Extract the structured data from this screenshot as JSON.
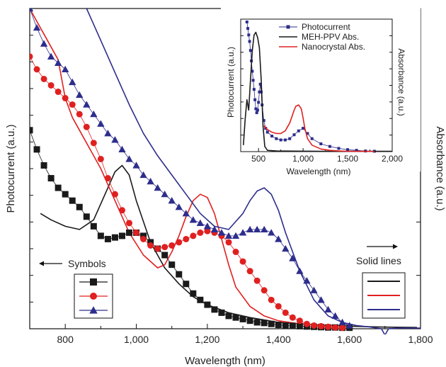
{
  "chart_data": [
    {
      "type": "line",
      "xlabel": "Wavelength (nm)",
      "ylabel_left": "Photocurrent (a.u.)",
      "ylabel_right": "Absorbance (a.u.)",
      "xlim": [
        700,
        1800
      ],
      "ylim": [
        0,
        1
      ],
      "x_ticks": [
        800,
        1000,
        1200,
        1400,
        1600,
        1800
      ],
      "x_tick_labels": [
        "800",
        "1,000",
        "1,200",
        "1,400",
        "1,600",
        "1,800"
      ],
      "annotations": {
        "symbols": "Symbols",
        "solid_lines": "Solid lines"
      },
      "series": [
        {
          "kind": "photocurrent",
          "marker": "square",
          "color": "#1a1a1a",
          "x": [
            700,
            720,
            740,
            760,
            780,
            800,
            820,
            840,
            860,
            880,
            900,
            920,
            940,
            960,
            980,
            1000,
            1020,
            1040,
            1060,
            1080,
            1100,
            1120,
            1140,
            1160,
            1180,
            1200,
            1220,
            1240,
            1260,
            1280,
            1300,
            1320,
            1340,
            1360,
            1380,
            1400,
            1420,
            1440,
            1460,
            1480,
            1500,
            1520,
            1540,
            1560,
            1580,
            1600
          ],
          "y": [
            0.62,
            0.56,
            0.51,
            0.47,
            0.44,
            0.42,
            0.4,
            0.38,
            0.35,
            0.32,
            0.29,
            0.28,
            0.285,
            0.29,
            0.3,
            0.3,
            0.29,
            0.27,
            0.25,
            0.23,
            0.2,
            0.17,
            0.14,
            0.11,
            0.09,
            0.075,
            0.06,
            0.05,
            0.04,
            0.035,
            0.03,
            0.025,
            0.02,
            0.018,
            0.015,
            0.012,
            0.01,
            0.009,
            0.008,
            0.007,
            0.006,
            0.005,
            0.004,
            0.004,
            0.003,
            0.003
          ]
        },
        {
          "kind": "photocurrent",
          "marker": "circle",
          "color": "#e02020",
          "x": [
            700,
            720,
            740,
            760,
            780,
            800,
            820,
            840,
            860,
            880,
            900,
            920,
            940,
            960,
            980,
            1000,
            1020,
            1040,
            1060,
            1080,
            1100,
            1120,
            1140,
            1160,
            1180,
            1200,
            1220,
            1240,
            1260,
            1280,
            1300,
            1320,
            1340,
            1360,
            1380,
            1400,
            1420,
            1440,
            1460,
            1480,
            1500,
            1520,
            1540,
            1560,
            1580
          ],
          "y": [
            0.85,
            0.81,
            0.78,
            0.76,
            0.74,
            0.72,
            0.7,
            0.67,
            0.63,
            0.58,
            0.53,
            0.47,
            0.42,
            0.37,
            0.33,
            0.3,
            0.28,
            0.26,
            0.25,
            0.255,
            0.26,
            0.27,
            0.28,
            0.29,
            0.3,
            0.305,
            0.3,
            0.29,
            0.27,
            0.24,
            0.21,
            0.18,
            0.15,
            0.12,
            0.09,
            0.07,
            0.05,
            0.035,
            0.025,
            0.015,
            0.01,
            0.008,
            0.006,
            0.004,
            0.003
          ]
        },
        {
          "kind": "photocurrent",
          "marker": "triangle",
          "color": "#2d2d8c",
          "x": [
            700,
            720,
            740,
            760,
            780,
            800,
            820,
            840,
            860,
            880,
            900,
            920,
            940,
            960,
            980,
            1000,
            1020,
            1040,
            1060,
            1080,
            1100,
            1120,
            1140,
            1160,
            1180,
            1200,
            1220,
            1240,
            1260,
            1280,
            1300,
            1320,
            1340,
            1360,
            1380,
            1400,
            1420,
            1440,
            1460,
            1480,
            1500,
            1520,
            1540,
            1560,
            1580,
            1600
          ],
          "y": [
            1.0,
            0.94,
            0.89,
            0.85,
            0.83,
            0.81,
            0.77,
            0.73,
            0.7,
            0.67,
            0.64,
            0.61,
            0.59,
            0.56,
            0.53,
            0.51,
            0.48,
            0.46,
            0.44,
            0.42,
            0.4,
            0.38,
            0.36,
            0.34,
            0.33,
            0.32,
            0.31,
            0.3,
            0.29,
            0.29,
            0.3,
            0.31,
            0.31,
            0.31,
            0.3,
            0.28,
            0.25,
            0.22,
            0.18,
            0.15,
            0.12,
            0.09,
            0.06,
            0.04,
            0.02,
            0.01
          ]
        },
        {
          "kind": "absorbance",
          "color": "#1a1a1a",
          "x": [
            730,
            760,
            800,
            840,
            880,
            920,
            940,
            960,
            980,
            1000,
            1040,
            1080,
            1120,
            1160,
            1200,
            1260,
            1320,
            1400,
            1500,
            1600,
            1700,
            1790
          ],
          "y": [
            0.36,
            0.34,
            0.32,
            0.31,
            0.34,
            0.44,
            0.49,
            0.51,
            0.48,
            0.4,
            0.27,
            0.19,
            0.14,
            0.1,
            0.075,
            0.05,
            0.035,
            0.02,
            0.012,
            0.008,
            0.005,
            0.004
          ]
        },
        {
          "kind": "absorbance",
          "color": "#e02020",
          "x": [
            700,
            720,
            740,
            760,
            780,
            800,
            820,
            860,
            900,
            940,
            980,
            1020,
            1060,
            1080,
            1100,
            1120,
            1140,
            1160,
            1180,
            1200,
            1220,
            1240,
            1260,
            1280,
            1320,
            1360,
            1400,
            1460,
            1520,
            1600
          ],
          "y": [
            1.0,
            0.96,
            0.92,
            0.88,
            0.84,
            0.72,
            0.66,
            0.58,
            0.5,
            0.4,
            0.3,
            0.23,
            0.19,
            0.2,
            0.24,
            0.29,
            0.35,
            0.4,
            0.42,
            0.41,
            0.36,
            0.28,
            0.2,
            0.13,
            0.07,
            0.04,
            0.025,
            0.015,
            0.01,
            0.008
          ]
        },
        {
          "kind": "absorbance",
          "color": "#2d2d8c",
          "x": [
            860,
            900,
            940,
            980,
            1020,
            1060,
            1100,
            1140,
            1180,
            1220,
            1260,
            1300,
            1320,
            1340,
            1360,
            1380,
            1400,
            1420,
            1460,
            1500,
            1540,
            1580,
            1620,
            1660,
            1690,
            1700,
            1710,
            1740,
            1800
          ],
          "y": [
            1.0,
            0.9,
            0.8,
            0.7,
            0.61,
            0.54,
            0.48,
            0.42,
            0.36,
            0.32,
            0.31,
            0.36,
            0.4,
            0.43,
            0.44,
            0.42,
            0.37,
            0.3,
            0.18,
            0.09,
            0.04,
            0.02,
            0.01,
            0.005,
            0.0,
            -0.02,
            0.0,
            0.002,
            0.002
          ]
        }
      ]
    },
    {
      "type": "line",
      "inset": true,
      "xlabel": "Wavelength (nm)",
      "ylabel_left": "Photocurrent (a.u.)",
      "ylabel_right": "Absorbance (a.u.)",
      "xlim": [
        300,
        2000
      ],
      "ylim": [
        0,
        1
      ],
      "x_ticks": [
        500,
        1000,
        1500,
        2000
      ],
      "x_tick_labels": [
        "500",
        "1,000",
        "1,500",
        "2,000"
      ],
      "series": [
        {
          "name": "Photocurrent",
          "marker": "square",
          "color": "#2d2d8c",
          "x": [
            370,
            380,
            390,
            400,
            410,
            420,
            430,
            440,
            450,
            460,
            470,
            480,
            490,
            500,
            510,
            520,
            530,
            540,
            560,
            580,
            600,
            650,
            700,
            750,
            800,
            850,
            900,
            950,
            1000,
            1050,
            1100,
            1200,
            1300,
            1400,
            1500,
            1600,
            1700,
            1800
          ],
          "y": [
            1.0,
            0.95,
            0.9,
            0.85,
            0.78,
            0.7,
            0.62,
            0.55,
            0.48,
            0.4,
            0.33,
            0.3,
            0.32,
            0.38,
            0.46,
            0.52,
            0.46,
            0.36,
            0.24,
            0.18,
            0.15,
            0.12,
            0.1,
            0.09,
            0.09,
            0.1,
            0.13,
            0.16,
            0.18,
            0.14,
            0.1,
            0.06,
            0.04,
            0.025,
            0.015,
            0.01,
            0.005,
            0.003
          ]
        },
        {
          "name": "MEH-PPV Abs.",
          "color": "#1a1a1a",
          "x": [
            330,
            350,
            370,
            390,
            410,
            430,
            450,
            470,
            490,
            510,
            530,
            550,
            570,
            600,
            700,
            900,
            1200,
            1500,
            2000
          ],
          "y": [
            0.05,
            0.25,
            0.4,
            0.32,
            0.55,
            0.78,
            0.9,
            0.92,
            0.88,
            0.8,
            0.55,
            0.2,
            0.04,
            0.01,
            0.005,
            0.004,
            0.003,
            0.002,
            0.002
          ]
        },
        {
          "name": "Nanocrystal Abs.",
          "color": "#e02020",
          "x": [
            560,
            600,
            650,
            700,
            750,
            800,
            850,
            880,
            900,
            920,
            950,
            980,
            1000,
            1020,
            1050,
            1100,
            1200,
            1300,
            1400,
            1500,
            1600,
            1700,
            1800
          ],
          "y": [
            0.2,
            0.17,
            0.15,
            0.14,
            0.14,
            0.16,
            0.22,
            0.28,
            0.32,
            0.35,
            0.36,
            0.33,
            0.26,
            0.18,
            0.1,
            0.05,
            0.02,
            0.01,
            0.005,
            0.003,
            0.002,
            0.002,
            0.001
          ]
        }
      ]
    }
  ]
}
